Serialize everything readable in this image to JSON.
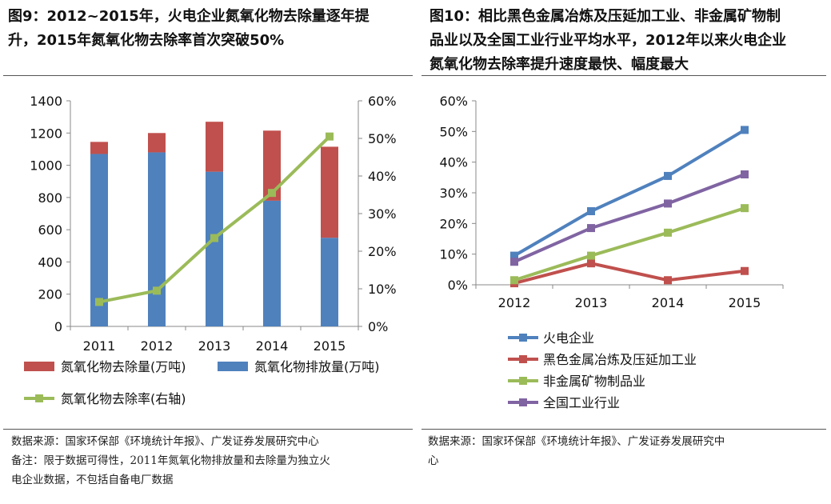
{
  "left": {
    "title": "图9：2012~2015年，火电企业氮氧化物去除量逐年提升，2015年氮氧化物去除率首次突破50%",
    "title_lines": [
      "图9：2012~2015年，火电企业氮氧化物去除量逐年提",
      "升，2015年氮氧化物去除率首次突破50%"
    ],
    "source_lines": [
      "数据来源：国家环保部《环境统计年报》、广发证券发展研究中心",
      "备注：限于数据可得性，2011年氮氧化物排放量和去除量为独立火",
      "电企业数据，不包括自备电厂数据"
    ]
  },
  "right": {
    "title": "图10：相比黑色金属冶炼及压延加工业、非金属矿物制品业以及全国工业行业平均水平，2012年以来火电企业氮氧化物去除率提升速度最快、幅度最大",
    "title_lines": [
      "图10：相比黑色金属冶炼及压延加工业、非金属矿物制",
      "品业以及全国工业行业平均水平，2012年以来火电企业",
      "氮氧化物去除率提升速度最快、幅度最大"
    ],
    "source_lines": [
      "数据来源：国家环保部《环境统计年报》、广发证券发展研究中",
      "心"
    ]
  },
  "colors": {
    "removal": "#C0504D",
    "emission": "#4F81BD",
    "rate": "#9BBB59",
    "purple": "#8064A2"
  },
  "chart_data": [
    {
      "type": "bar",
      "stacked": true,
      "categories": [
        "2011",
        "2012",
        "2013",
        "2014",
        "2015"
      ],
      "series": [
        {
          "name": "氮氧化物排放量(万吨)",
          "axis": "left",
          "values": [
            1070,
            1080,
            960,
            780,
            550
          ]
        },
        {
          "name": "氮氧化物去除量(万吨)",
          "axis": "left",
          "values": [
            75,
            120,
            310,
            435,
            565
          ]
        },
        {
          "name": "氮氧化物去除率(右轴)",
          "axis": "right",
          "type": "line",
          "values": [
            0.065,
            0.095,
            0.235,
            0.355,
            0.505
          ]
        }
      ],
      "ylim": [
        0,
        1400
      ],
      "yticks": [
        "0",
        "200",
        "400",
        "600",
        "800",
        "1000",
        "1200",
        "1400"
      ],
      "y2lim": [
        0,
        0.6
      ],
      "y2ticks": [
        "0%",
        "10%",
        "20%",
        "30%",
        "40%",
        "50%",
        "60%"
      ],
      "legend_order": [
        "氮氧化物去除量(万吨)",
        "氮氧化物排放量(万吨)",
        "氮氧化物去除率(右轴)"
      ],
      "legend_position": "bottom"
    },
    {
      "type": "line",
      "categories": [
        "2012",
        "2013",
        "2014",
        "2015"
      ],
      "series": [
        {
          "name": "火电企业",
          "values": [
            0.095,
            0.24,
            0.355,
            0.505
          ]
        },
        {
          "name": "黑色金属冶炼及压延加工业",
          "values": [
            0.005,
            0.07,
            0.015,
            0.045
          ]
        },
        {
          "name": "非金属矿物制品业",
          "values": [
            0.015,
            0.095,
            0.17,
            0.25
          ]
        },
        {
          "name": "全国工业行业",
          "values": [
            0.075,
            0.185,
            0.265,
            0.36
          ]
        }
      ],
      "ylim": [
        0,
        0.6
      ],
      "yticks": [
        "0%",
        "10%",
        "20%",
        "30%",
        "40%",
        "50%",
        "60%"
      ],
      "legend_position": "bottom"
    }
  ]
}
